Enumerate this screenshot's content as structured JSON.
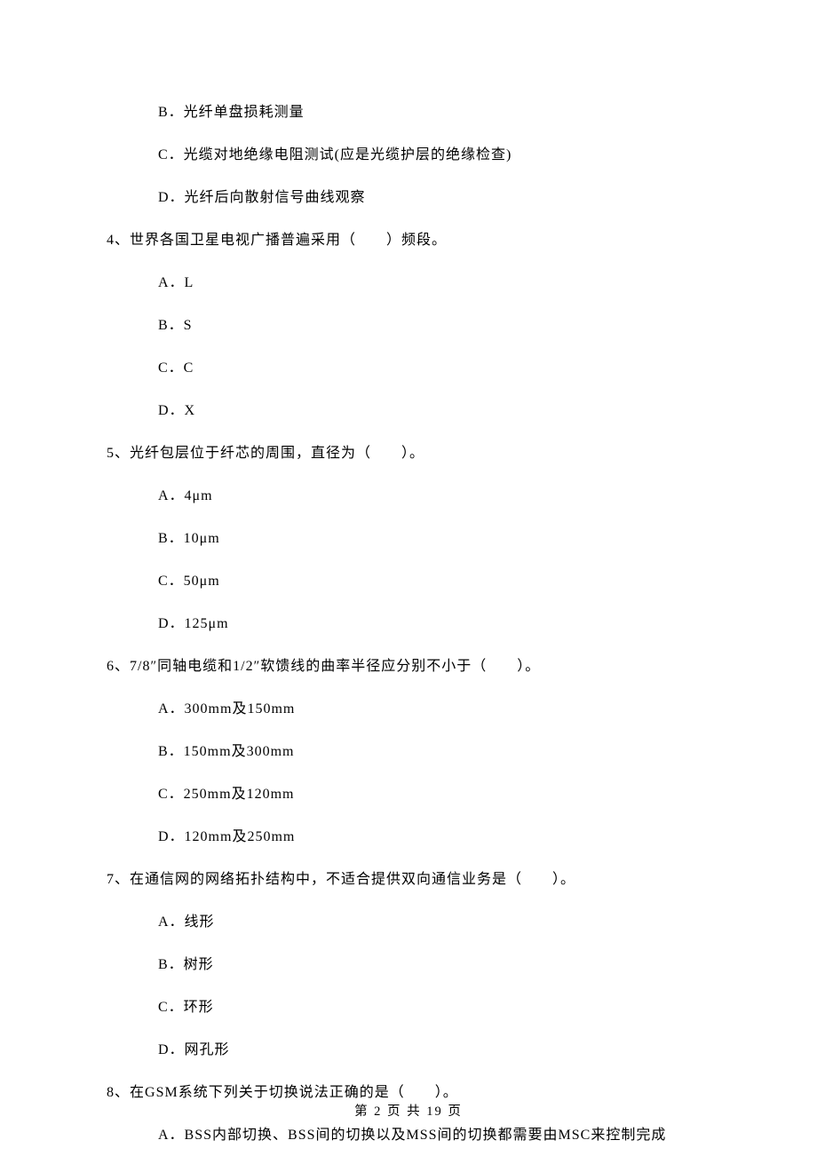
{
  "prev_options": [
    "B．光纤单盘损耗测量",
    "C．光缆对地绝缘电阻测试(应是光缆护层的绝缘检查)",
    "D．光纤后向散射信号曲线观察"
  ],
  "questions": [
    {
      "num": "4、",
      "stem": "世界各国卫星电视广播普遍采用（　　）频段。",
      "options": [
        "A．L",
        "B．S",
        "C．C",
        "D．X"
      ]
    },
    {
      "num": "5、",
      "stem": "光纤包层位于纤芯的周围，直径为（　　）。",
      "options": [
        "A．4μm",
        "B．10μm",
        "C．50μm",
        "D．125μm"
      ]
    },
    {
      "num": "6、",
      "stem": "7/8″同轴电缆和1/2″软馈线的曲率半径应分别不小于（　　）。",
      "options": [
        "A．300mm及150mm",
        "B．150mm及300mm",
        "C．250mm及120mm",
        "D．120mm及250mm"
      ]
    },
    {
      "num": "7、",
      "stem": "在通信网的网络拓扑结构中，不适合提供双向通信业务是（　　）。",
      "options": [
        "A．线形",
        "B．树形",
        "C．环形",
        "D．网孔形"
      ]
    },
    {
      "num": "8、",
      "stem": "在GSM系统下列关于切换说法正确的是（　　）。",
      "options": [
        "A．BSS内部切换、BSS间的切换以及MSS间的切换都需要由MSC来控制完成"
      ]
    }
  ],
  "footer": "第 2 页 共 19 页"
}
